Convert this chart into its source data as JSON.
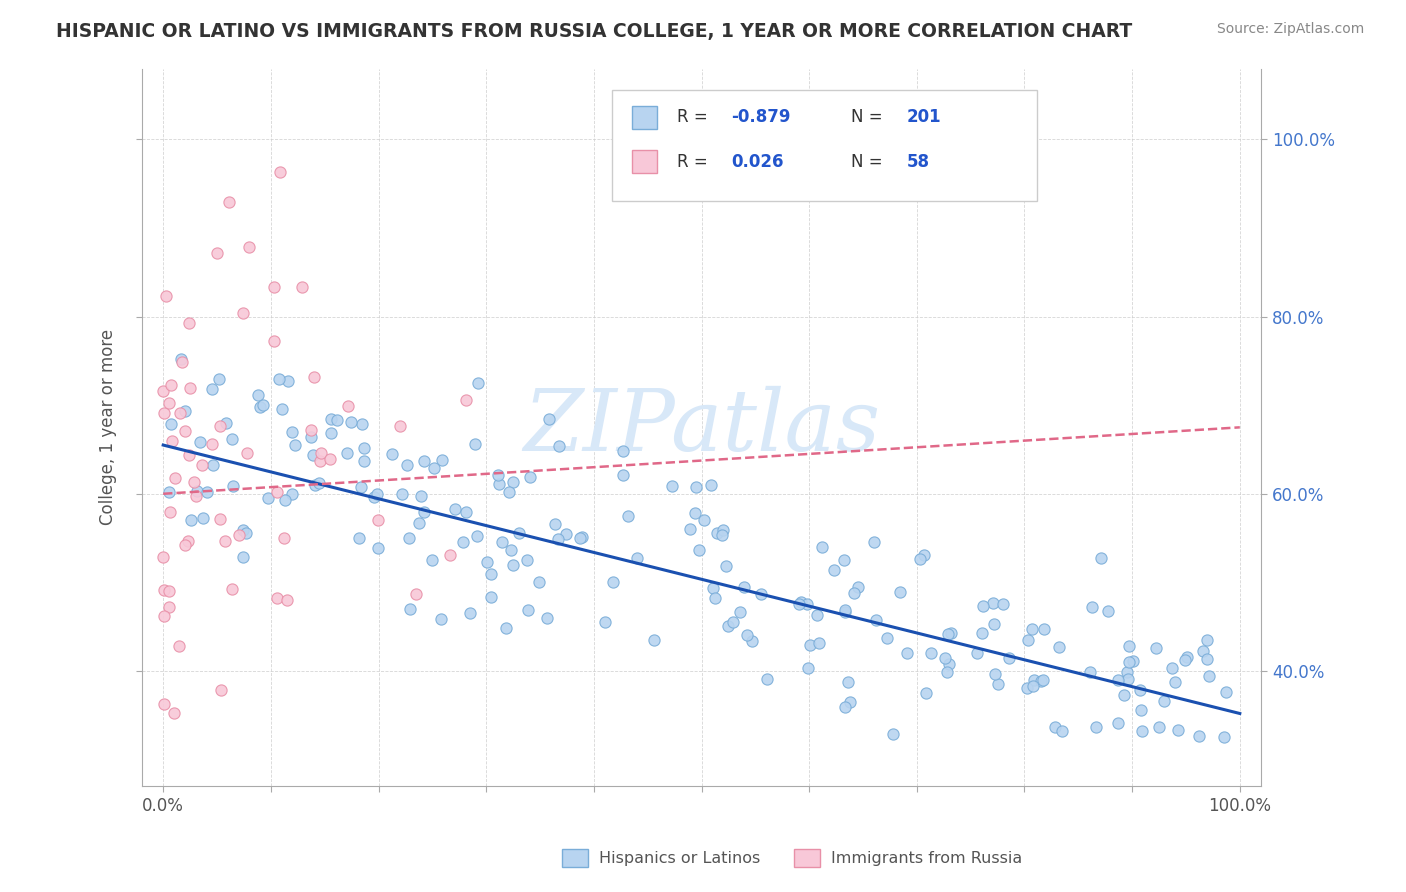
{
  "title": "HISPANIC OR LATINO VS IMMIGRANTS FROM RUSSIA COLLEGE, 1 YEAR OR MORE CORRELATION CHART",
  "source": "Source: ZipAtlas.com",
  "ylabel": "College, 1 year or more",
  "xlim": [
    -0.02,
    1.02
  ],
  "ylim": [
    0.27,
    1.08
  ],
  "xtick_positions": [
    0.0,
    0.1,
    0.2,
    0.3,
    0.4,
    0.5,
    0.6,
    0.7,
    0.8,
    0.9,
    1.0
  ],
  "xticklabels_show": {
    "0.0": "0.0%",
    "1.0": "100.0%"
  },
  "ytick_positions": [
    0.4,
    0.6,
    0.8,
    1.0
  ],
  "yticklabels": [
    "40.0%",
    "60.0%",
    "80.0%",
    "100.0%"
  ],
  "blue_R": -0.879,
  "blue_N": 201,
  "pink_R": 0.026,
  "pink_N": 58,
  "blue_color": "#b8d4f0",
  "blue_edge": "#7aadd8",
  "pink_color": "#f8c8d8",
  "pink_edge": "#e890a8",
  "blue_line_color": "#1a50b0",
  "pink_line_color": "#e06888",
  "watermark_color": "#d8e8f8",
  "legend_label_blue": "Hispanics or Latinos",
  "legend_label_pink": "Immigrants from Russia",
  "blue_trend_start_y": 0.655,
  "blue_trend_end_y": 0.352,
  "pink_trend_start_y": 0.6,
  "pink_trend_end_y": 0.675,
  "seed": 42
}
